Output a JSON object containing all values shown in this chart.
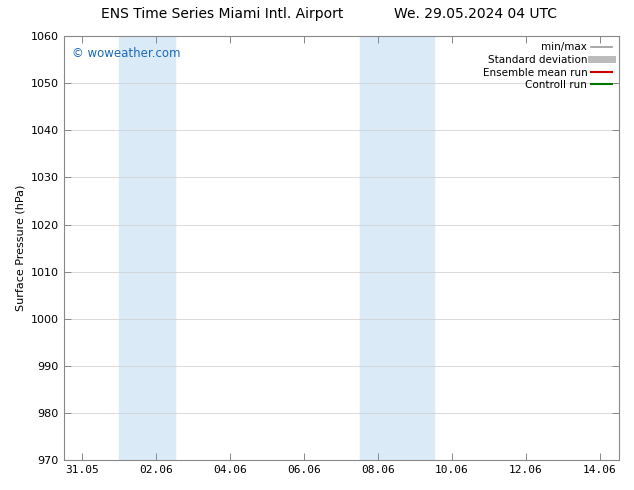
{
  "title_left": "ENS Time Series Miami Intl. Airport",
  "title_right": "We. 29.05.2024 04 UTC",
  "ylabel": "Surface Pressure (hPa)",
  "ylim": [
    970,
    1060
  ],
  "yticks": [
    970,
    980,
    990,
    1000,
    1010,
    1020,
    1030,
    1040,
    1050,
    1060
  ],
  "xtick_labels": [
    "31.05",
    "02.06",
    "04.06",
    "06.06",
    "08.06",
    "10.06",
    "12.06",
    "14.06"
  ],
  "xtick_positions": [
    0,
    2,
    4,
    6,
    8,
    10,
    12,
    14
  ],
  "xlim": [
    -0.5,
    14.5
  ],
  "shading_bands": [
    {
      "x_start": 1.0,
      "x_end": 2.5,
      "color": "#daeaf7"
    },
    {
      "x_start": 7.5,
      "x_end": 9.5,
      "color": "#daeaf7"
    }
  ],
  "watermark": "© woweather.com",
  "watermark_color": "#1a6aba",
  "legend_items": [
    {
      "label": "min/max",
      "color": "#999999",
      "lw": 1.2
    },
    {
      "label": "Standard deviation",
      "color": "#bbbbbb",
      "lw": 5
    },
    {
      "label": "Ensemble mean run",
      "color": "#cc0000",
      "lw": 1.5
    },
    {
      "label": "Controll run",
      "color": "#007700",
      "lw": 1.5
    }
  ],
  "bg_color": "#ffffff",
  "grid_color": "#cccccc",
  "title_fontsize": 10,
  "tick_fontsize": 8,
  "ylabel_fontsize": 8,
  "legend_fontsize": 7.5
}
